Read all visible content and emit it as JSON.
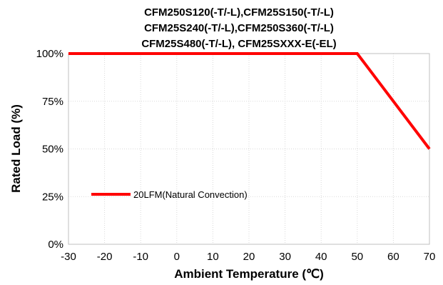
{
  "chart_data": {
    "type": "line",
    "title_lines": [
      "CFM250S120(-T/-L),CFM25S150(-T/-L)",
      "CFM25S240(-T/-L),CFM250S360(-T/-L)",
      "CFM25S480(-T/-L), CFM25SXXX-E(-EL)"
    ],
    "xlabel": "Ambient Temperature (℃)",
    "ylabel": "Rated Load  (%)",
    "xlim": [
      -30,
      70
    ],
    "ylim": [
      0,
      100
    ],
    "x_ticks": [
      "-30",
      "-20",
      "-10",
      "0",
      "10",
      "20",
      "30",
      "40",
      "50",
      "60",
      "70"
    ],
    "y_ticks": [
      "0%",
      "25%",
      "50%",
      "75%",
      "100%"
    ],
    "grid": true,
    "legend_placement": "lower-left",
    "series": [
      {
        "name": "20LFM(Natural Convection)",
        "color": "#ff0000",
        "x": [
          -30,
          50,
          70
        ],
        "y": [
          100,
          100,
          50
        ]
      }
    ]
  }
}
